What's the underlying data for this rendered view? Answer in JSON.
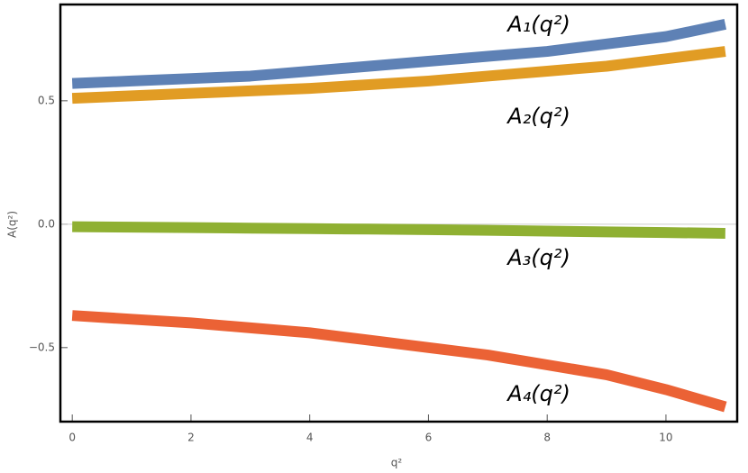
{
  "chart_data": {
    "type": "line",
    "x_label": "q²",
    "y_label": "A(q²)",
    "x": [
      0,
      1,
      2,
      3,
      4,
      5,
      6,
      7,
      8,
      9,
      10,
      11
    ],
    "series": [
      {
        "name": "A₁(q²)",
        "color": "#5e81b5",
        "values": [
          0.57,
          0.58,
          0.59,
          0.6,
          0.62,
          0.64,
          0.66,
          0.68,
          0.7,
          0.73,
          0.76,
          0.81
        ]
      },
      {
        "name": "A₂(q²)",
        "color": "#e19c24",
        "values": [
          0.51,
          0.52,
          0.53,
          0.54,
          0.55,
          0.565,
          0.58,
          0.6,
          0.62,
          0.64,
          0.67,
          0.7
        ]
      },
      {
        "name": "A₃(q²)",
        "color": "#8fb032",
        "values": [
          -0.01,
          -0.012,
          -0.014,
          -0.016,
          -0.018,
          -0.02,
          -0.022,
          -0.025,
          -0.028,
          -0.031,
          -0.034,
          -0.037
        ]
      },
      {
        "name": "A₄(q²)",
        "color": "#eb6235",
        "values": [
          -0.37,
          -0.385,
          -0.4,
          -0.42,
          -0.44,
          -0.47,
          -0.5,
          -0.53,
          -0.57,
          -0.61,
          -0.67,
          -0.74
        ]
      }
    ],
    "xlim": [
      -0.2,
      11.2
    ],
    "ylim": [
      -0.8,
      0.89
    ],
    "xticks": [
      0,
      2,
      4,
      6,
      8,
      10
    ],
    "yticks": [
      {
        "value": -0.5,
        "label": "−0.5"
      },
      {
        "value": 0,
        "label": "0.0"
      },
      0.5
    ]
  }
}
